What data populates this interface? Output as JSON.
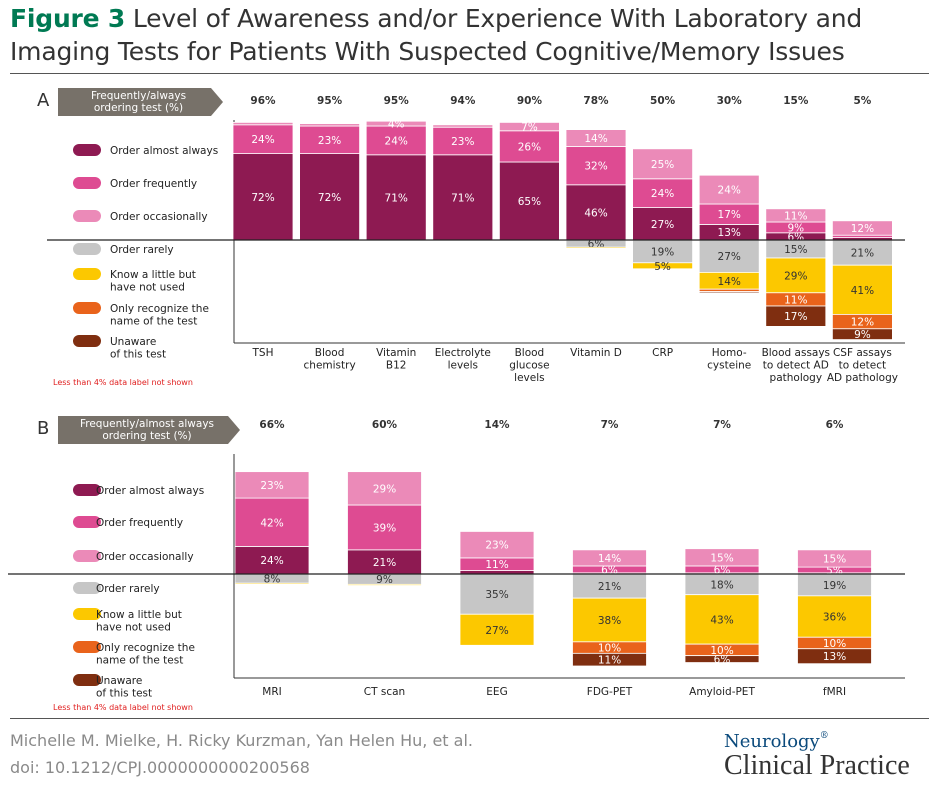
{
  "figure": {
    "label": "Figure 3",
    "title": "Level of Awareness and/or Experience With Laboratory and Imaging Tests for Patients With Suspected Cognitive/Memory Issues",
    "authors": "Michelle M. Mielke, H. Ricky Kurzman, Yan Helen Hu, et al.",
    "doi": "doi: 10.1212/CPJ.0000000000200568",
    "brand_top": "Neurology",
    "brand_mark": "®",
    "brand_bottom": "Clinical Practice"
  },
  "colors": {
    "almost_always": "#8e1a52",
    "frequently": "#de4b92",
    "occasionally": "#eb8ab8",
    "rarely": "#c6c6c6",
    "know_little": "#fcc800",
    "only_recognize": "#e9631b",
    "unaware": "#7f2e10",
    "header_arrow": "#777169"
  },
  "chart_data": [
    {
      "type": "bar",
      "panel": "A",
      "header": [
        "Frequently/always",
        "ordering test (%)"
      ],
      "footnote": "Less than 4% data label not shown",
      "legend": [
        {
          "key": "almost_always",
          "label": [
            "Order almost always"
          ]
        },
        {
          "key": "frequently",
          "label": [
            "Order frequently"
          ]
        },
        {
          "key": "occasionally",
          "label": [
            "Order occasionally"
          ]
        },
        {
          "key": "rarely",
          "label": [
            "Order rarely"
          ]
        },
        {
          "key": "know_little",
          "label": [
            "Know a little but",
            "have not used"
          ]
        },
        {
          "key": "only_recognize",
          "label": [
            "Only recognize the",
            "name of the test"
          ]
        },
        {
          "key": "unaware",
          "label": [
            "Unaware",
            "of this test"
          ]
        }
      ],
      "categories": [
        [
          "TSH"
        ],
        [
          "Blood",
          "chemistry"
        ],
        [
          "Vitamin",
          "B12"
        ],
        [
          "Electrolyte",
          "levels"
        ],
        [
          "Blood",
          "glucose",
          "levels"
        ],
        [
          "Vitamin D"
        ],
        [
          "CRP"
        ],
        [
          "Homo-",
          "cysteine"
        ],
        [
          "Blood assays",
          "to detect AD",
          "pathology"
        ],
        [
          "CSF assays",
          "to detect",
          "AD pathology"
        ]
      ],
      "ordering_pct": [
        "96%",
        "95%",
        "95%",
        "94%",
        "90%",
        "78%",
        "50%",
        "30%",
        "15%",
        "5%"
      ],
      "series_above": [
        {
          "key": "almost_always",
          "values": [
            72,
            72,
            71,
            71,
            65,
            46,
            27,
            13,
            6,
            2
          ]
        },
        {
          "key": "frequently",
          "values": [
            24,
            23,
            24,
            23,
            26,
            32,
            24,
            17,
            9,
            2
          ]
        },
        {
          "key": "occasionally",
          "values": [
            2,
            2,
            4,
            2,
            7,
            14,
            25,
            24,
            11,
            12
          ]
        }
      ],
      "series_below": [
        {
          "key": "rarely",
          "values": [
            0,
            0,
            0,
            0,
            0,
            6,
            19,
            27,
            15,
            21
          ]
        },
        {
          "key": "know_little",
          "values": [
            0,
            0,
            0,
            0,
            0,
            1,
            5,
            14,
            29,
            41
          ]
        },
        {
          "key": "only_recognize",
          "values": [
            0,
            0,
            0,
            0,
            0,
            0,
            0,
            2,
            11,
            12
          ]
        },
        {
          "key": "unaware",
          "values": [
            0,
            0,
            0,
            0,
            0,
            0,
            0,
            1,
            17,
            9
          ]
        }
      ]
    },
    {
      "type": "bar",
      "panel": "B",
      "header": [
        "Frequently/almost always",
        "ordering test (%)"
      ],
      "footnote": "Less than 4% data label not shown",
      "legend": [
        {
          "key": "almost_always",
          "label": [
            "Order almost always"
          ]
        },
        {
          "key": "frequently",
          "label": [
            "Order frequently"
          ]
        },
        {
          "key": "occasionally",
          "label": [
            "Order occasionally"
          ]
        },
        {
          "key": "rarely",
          "label": [
            "Order rarely"
          ]
        },
        {
          "key": "know_little",
          "label": [
            "Know a little but",
            "have not used"
          ]
        },
        {
          "key": "only_recognize",
          "label": [
            "Only recognize the",
            "name of the test"
          ]
        },
        {
          "key": "unaware",
          "label": [
            "Unaware",
            "of this test"
          ]
        }
      ],
      "categories": [
        [
          "MRI"
        ],
        [
          "CT scan"
        ],
        [
          "EEG"
        ],
        [
          "FDG-PET"
        ],
        [
          "Amyloid-PET"
        ],
        [
          "fMRI"
        ]
      ],
      "ordering_pct": [
        "66%",
        "60%",
        "14%",
        "7%",
        "7%",
        "6%"
      ],
      "series_above": [
        {
          "key": "almost_always",
          "values": [
            24,
            21,
            3,
            1,
            1,
            1
          ]
        },
        {
          "key": "frequently",
          "values": [
            42,
            39,
            11,
            6,
            6,
            5
          ]
        },
        {
          "key": "occasionally",
          "values": [
            23,
            29,
            23,
            14,
            15,
            15
          ]
        }
      ],
      "series_below": [
        {
          "key": "rarely",
          "values": [
            8,
            9,
            35,
            21,
            18,
            19
          ]
        },
        {
          "key": "know_little",
          "values": [
            1,
            1,
            27,
            38,
            43,
            36
          ]
        },
        {
          "key": "only_recognize",
          "values": [
            0,
            0,
            0,
            10,
            10,
            10
          ]
        },
        {
          "key": "unaware",
          "values": [
            0,
            0,
            0,
            11,
            6,
            13
          ]
        }
      ]
    }
  ]
}
